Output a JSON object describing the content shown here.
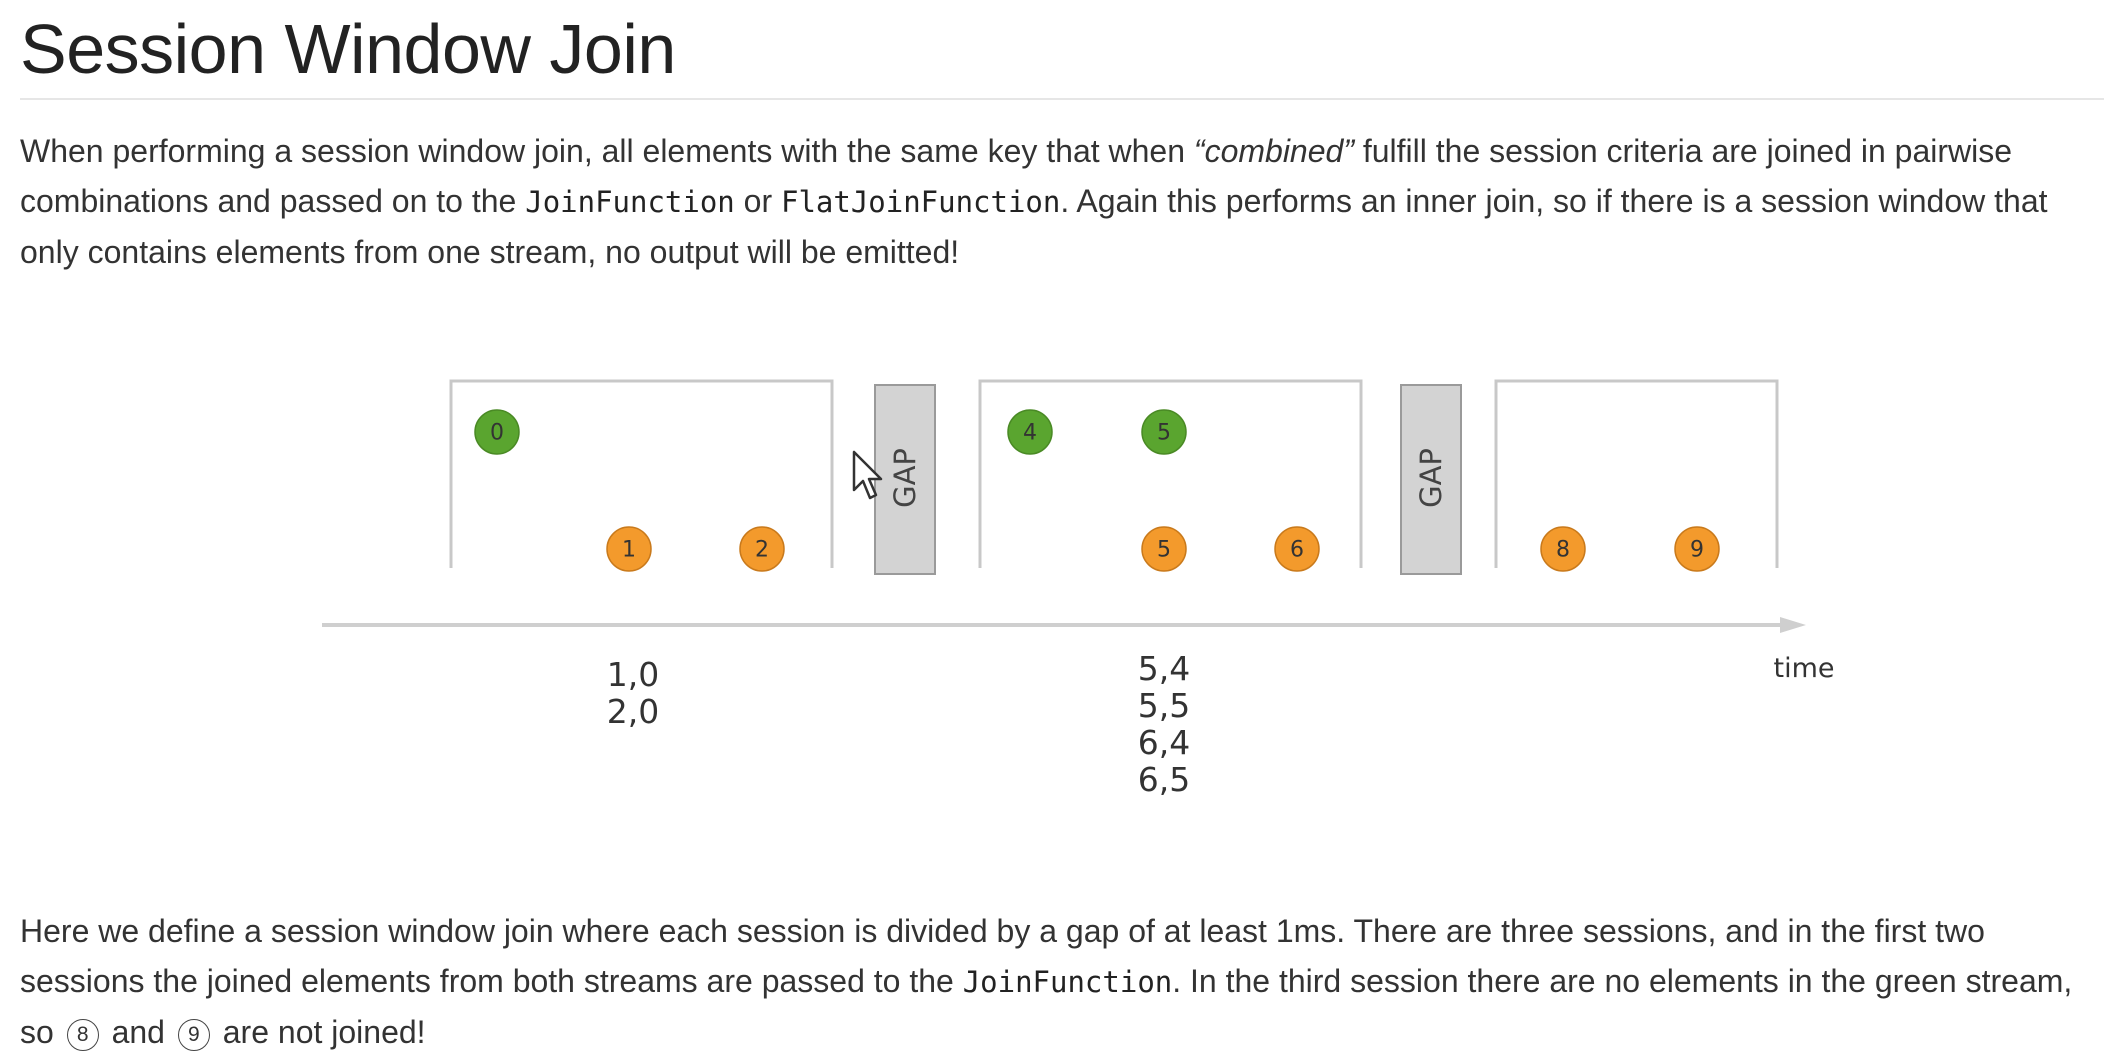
{
  "title": "Session Window Join",
  "intro": {
    "part1": "When performing a session window join, all elements with the same key that when ",
    "emph": "“combined”",
    "part2": " fulfill the session criteria are joined in pairwise combinations and passed on to the ",
    "code1": "JoinFunction",
    "part3": " or ",
    "code2": "FlatJoinFunction",
    "part4": ". Again this performs an inner join, so if there is a session window that only contains elements from one stream, no output will be emitted!"
  },
  "diagram": {
    "colors": {
      "green": "#5aa52f",
      "orange": "#f39a2c",
      "gap": "#d3d3d3",
      "border": "#c8c8c8"
    },
    "gap_label": "GAP",
    "time_label": "time",
    "windows": [
      {
        "green": [
          "0"
        ],
        "orange": [
          "1",
          "2"
        ],
        "results": [
          "1,0",
          "2,0"
        ]
      },
      {
        "green": [
          "4",
          "5"
        ],
        "orange": [
          "5",
          "6"
        ],
        "results": [
          "5,4",
          "5,5",
          "6,4",
          "6,5"
        ]
      },
      {
        "green": [],
        "orange": [
          "8",
          "9"
        ],
        "results": []
      }
    ]
  },
  "outro": {
    "part1": "Here we define a session window join where each session is divided by a gap of at least 1ms. There are three sessions, and in the first two sessions the joined elements from both streams are passed to the ",
    "code": "JoinFunction",
    "part2": ". In the third session there are no elements in the green stream, so ",
    "c8": "8",
    "part3": " and ",
    "c9": "9",
    "part4": " are not joined!"
  }
}
